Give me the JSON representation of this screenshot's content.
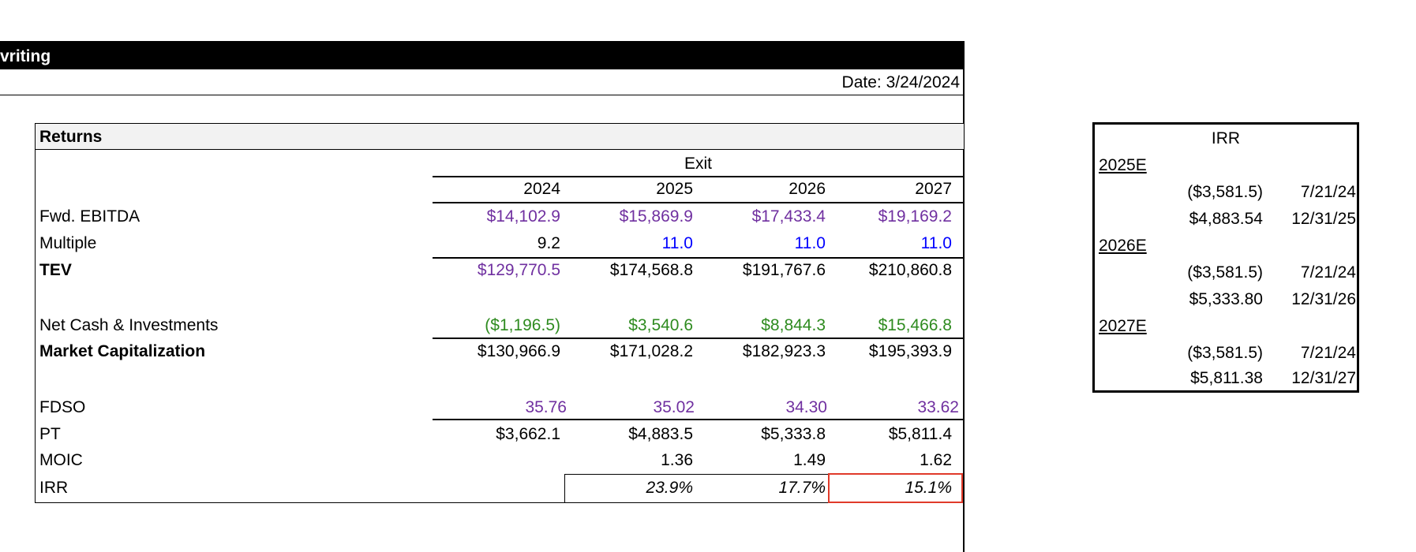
{
  "sheet": {
    "banner_title": "vriting",
    "date": "Date: 3/24/2024"
  },
  "returns": {
    "title": "Returns",
    "exit_label": "Exit",
    "years": [
      "2024",
      "2025",
      "2026",
      "2027"
    ],
    "rows": {
      "fwd_ebitda": {
        "label": "Fwd. EBITDA",
        "values": [
          "$14,102.9",
          "$15,869.9",
          "$17,433.4",
          "$19,169.2"
        ]
      },
      "multiple": {
        "label": "Multiple",
        "values": [
          "9.2",
          "11.0",
          "11.0",
          "11.0"
        ]
      },
      "tev": {
        "label": "TEV",
        "values": [
          "$129,770.5",
          "$174,568.8",
          "$191,767.6",
          "$210,860.8"
        ]
      },
      "net_cash": {
        "label": "Net Cash & Investments",
        "values": [
          "($1,196.5)",
          "$3,540.6",
          "$8,844.3",
          "$15,466.8"
        ]
      },
      "market_cap": {
        "label": "Market Capitalization",
        "values": [
          "$130,966.9",
          "$171,028.2",
          "$182,923.3",
          "$195,393.9"
        ]
      },
      "fdso": {
        "label": "FDSO",
        "values": [
          "35.76",
          "35.02",
          "34.30",
          "33.62"
        ]
      },
      "pt": {
        "label": "PT",
        "values": [
          "$3,662.1",
          "$4,883.5",
          "$5,333.8",
          "$5,811.4"
        ]
      },
      "moic": {
        "label": "MOIC",
        "values": [
          "",
          "1.36",
          "1.49",
          "1.62"
        ]
      },
      "irr": {
        "label": "IRR",
        "values": [
          "",
          "23.9%",
          "17.7%",
          "15.1%"
        ]
      }
    }
  },
  "irr_panel": {
    "title": "IRR",
    "groups": [
      {
        "year": "2025E",
        "rows": [
          {
            "value": "($3,581.5)",
            "date": "7/21/24"
          },
          {
            "value": "$4,883.54",
            "date": "12/31/25"
          }
        ]
      },
      {
        "year": "2026E",
        "rows": [
          {
            "value": "($3,581.5)",
            "date": "7/21/24"
          },
          {
            "value": "$5,333.80",
            "date": "12/31/26"
          }
        ]
      },
      {
        "year": "2027E",
        "rows": [
          {
            "value": "($3,581.5)",
            "date": "7/21/24"
          },
          {
            "value": "$5,811.38",
            "date": "12/31/27"
          }
        ]
      }
    ]
  },
  "colors": {
    "formula_link": "#7030a0",
    "input": "#0000ff",
    "balance": "#2e8b1f",
    "highlight": "#e03a2a"
  }
}
